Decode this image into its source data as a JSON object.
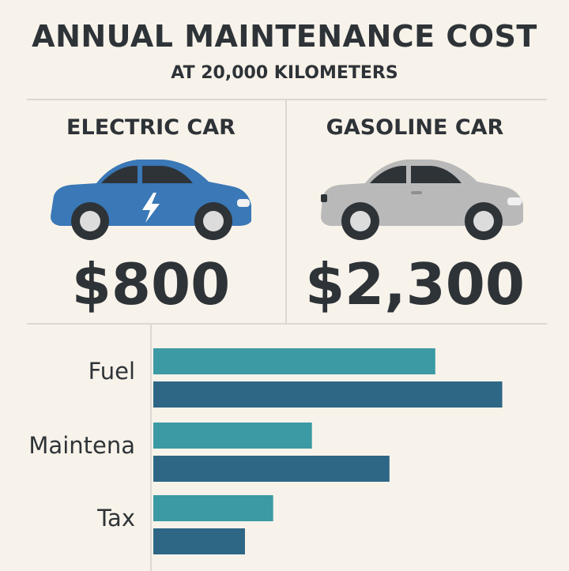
{
  "header": {
    "title": "ANNUAL MAINTENANCE COST",
    "subtitle": "AT 20,000 KILOMETERS"
  },
  "panels": [
    {
      "label": "ELECTRIC CAR",
      "price": "$800",
      "car_color": "#3a78b7",
      "car_icon": "lightning-bolt"
    },
    {
      "label": "GASOLINE CAR",
      "price": "$2,300",
      "car_color": "#b9b9b9",
      "car_icon": "none"
    }
  ],
  "chart_data": {
    "type": "bar",
    "orientation": "horizontal",
    "categories": [
      "Fuel",
      "Maintena",
      "Tax"
    ],
    "series": [
      {
        "color": "#3b9aa4",
        "values": [
          80,
          45,
          34
        ]
      },
      {
        "color": "#2e6686",
        "values": [
          99,
          67,
          26
        ]
      }
    ],
    "xlim": [
      0,
      100
    ],
    "grid": false,
    "legend": "none"
  }
}
